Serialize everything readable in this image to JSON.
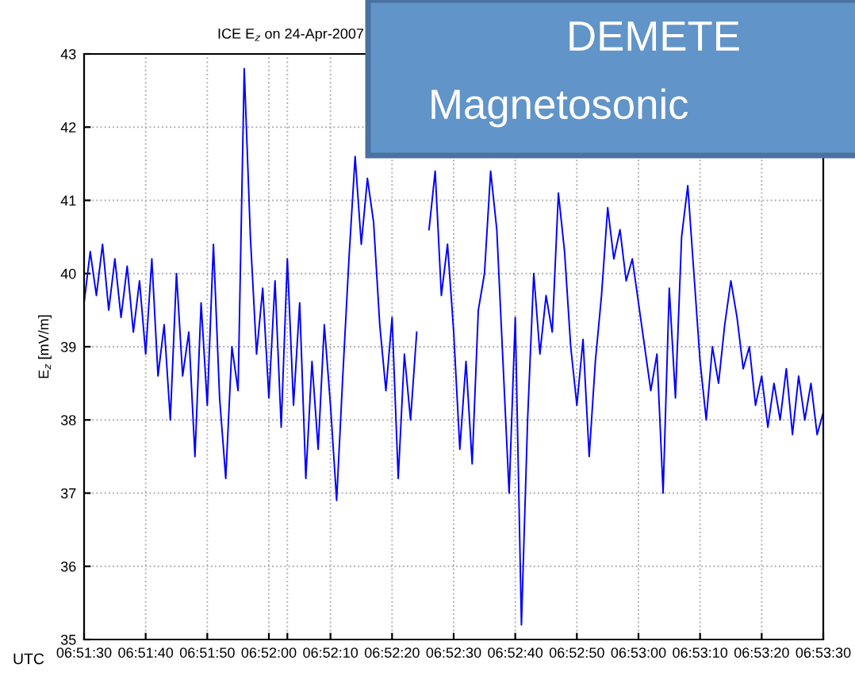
{
  "chart_data": {
    "type": "line",
    "title": "ICE E$_{z}$ on 24-Apr-2007",
    "ylabel": "E$_{z}$ [mV/m]",
    "annotations": [
      "UTC",
      "DEMETE",
      "Magnetosonic"
    ],
    "x": [
      "2007-04-24T06:51:30",
      "2007-04-24T06:51:31",
      "2007-04-24T06:51:32",
      "2007-04-24T06:51:33",
      "2007-04-24T06:51:34",
      "2007-04-24T06:51:35",
      "2007-04-24T06:51:36",
      "2007-04-24T06:51:37",
      "2007-04-24T06:51:38",
      "2007-04-24T06:51:39",
      "2007-04-24T06:51:40",
      "2007-04-24T06:51:41",
      "2007-04-24T06:51:42",
      "2007-04-24T06:51:43",
      "2007-04-24T06:51:44",
      "2007-04-24T06:51:45",
      "2007-04-24T06:51:46",
      "2007-04-24T06:51:47",
      "2007-04-24T06:51:48",
      "2007-04-24T06:51:49",
      "2007-04-24T06:51:50",
      "2007-04-24T06:51:51",
      "2007-04-24T06:51:52",
      "2007-04-24T06:51:53",
      "2007-04-24T06:51:54",
      "2007-04-24T06:51:55",
      "2007-04-24T06:51:56",
      "2007-04-24T06:51:57",
      "2007-04-24T06:51:58",
      "2007-04-24T06:51:59",
      "2007-04-24T06:52:00",
      "2007-04-24T06:52:01",
      "2007-04-24T06:52:02",
      "2007-04-24T06:52:03",
      "2007-04-24T06:52:04",
      "2007-04-24T06:52:05",
      "2007-04-24T06:52:06",
      "2007-04-24T06:52:07",
      "2007-04-24T06:52:08",
      "2007-04-24T06:52:09",
      "2007-04-24T06:52:10",
      "2007-04-24T06:52:11",
      "2007-04-24T06:52:12",
      "2007-04-24T06:52:13",
      "2007-04-24T06:52:14",
      "2007-04-24T06:52:15",
      "2007-04-24T06:52:16",
      "2007-04-24T06:52:17",
      "2007-04-24T06:52:18",
      "2007-04-24T06:52:19",
      "2007-04-24T06:52:20",
      "2007-04-24T06:52:21",
      "2007-04-24T06:52:22",
      "2007-04-24T06:52:23",
      "2007-04-24T06:52:24",
      "2007-04-24T06:52:25",
      "2007-04-24T06:52:26",
      "2007-04-24T06:52:27",
      "2007-04-24T06:52:28",
      "2007-04-24T06:52:29",
      "2007-04-24T06:52:30",
      "2007-04-24T06:52:31",
      "2007-04-24T06:52:32",
      "2007-04-24T06:52:33",
      "2007-04-24T06:52:34",
      "2007-04-24T06:52:35",
      "2007-04-24T06:52:36",
      "2007-04-24T06:52:37",
      "2007-04-24T06:52:38",
      "2007-04-24T06:52:39",
      "2007-04-24T06:52:40",
      "2007-04-24T06:52:41",
      "2007-04-24T06:52:42",
      "2007-04-24T06:52:43",
      "2007-04-24T06:52:44",
      "2007-04-24T06:52:45",
      "2007-04-24T06:52:46",
      "2007-04-24T06:52:47",
      "2007-04-24T06:52:48",
      "2007-04-24T06:52:49",
      "2007-04-24T06:52:50",
      "2007-04-24T06:52:51",
      "2007-04-24T06:52:52",
      "2007-04-24T06:52:53",
      "2007-04-24T06:52:54",
      "2007-04-24T06:52:55",
      "2007-04-24T06:52:56",
      "2007-04-24T06:52:57",
      "2007-04-24T06:52:58",
      "2007-04-24T06:52:59",
      "2007-04-24T06:53:00",
      "2007-04-24T06:53:01",
      "2007-04-24T06:53:02",
      "2007-04-24T06:53:03",
      "2007-04-24T06:53:04",
      "2007-04-24T06:53:05",
      "2007-04-24T06:53:06",
      "2007-04-24T06:53:07",
      "2007-04-24T06:53:08",
      "2007-04-24T06:53:09",
      "2007-04-24T06:53:10",
      "2007-04-24T06:53:11",
      "2007-04-24T06:53:12",
      "2007-04-24T06:53:13",
      "2007-04-24T06:53:14",
      "2007-04-24T06:53:15",
      "2007-04-24T06:53:16",
      "2007-04-24T06:53:17",
      "2007-04-24T06:53:18",
      "2007-04-24T06:53:19",
      "2007-04-24T06:53:20",
      "2007-04-24T06:53:21",
      "2007-04-24T06:53:22",
      "2007-04-24T06:53:23",
      "2007-04-24T06:53:24",
      "2007-04-24T06:53:25",
      "2007-04-24T06:53:26",
      "2007-04-24T06:53:27",
      "2007-04-24T06:53:28",
      "2007-04-24T06:53:29",
      "2007-04-24T06:53:30"
    ],
    "series": [
      {
        "color": "#0000ff",
        "values": [
          39.6,
          40.3,
          39.7,
          40.4,
          39.5,
          40.2,
          39.4,
          40.1,
          39.2,
          39.9,
          38.9,
          40.2,
          38.6,
          39.3,
          38.0,
          40.0,
          38.6,
          39.2,
          37.5,
          39.6,
          38.2,
          40.4,
          38.3,
          37.2,
          39.0,
          38.4,
          42.8,
          40.5,
          38.9,
          39.8,
          38.3,
          39.9,
          37.9,
          40.2,
          38.2,
          39.6,
          37.2,
          38.8,
          37.6,
          39.3,
          38.2,
          36.9,
          38.6,
          40.2,
          41.6,
          40.4,
          41.3,
          40.7,
          39.3,
          38.4,
          39.4,
          37.2,
          38.9,
          38.0,
          39.2,
          null,
          40.6,
          41.4,
          39.7,
          40.4,
          39.2,
          37.6,
          38.8,
          37.4,
          39.5,
          40.0,
          41.4,
          40.6,
          38.8,
          37.0,
          39.4,
          35.2,
          38.0,
          40.0,
          38.9,
          39.7,
          39.2,
          41.1,
          40.3,
          39.0,
          38.2,
          39.1,
          37.5,
          38.8,
          39.7,
          40.9,
          40.2,
          40.6,
          39.9,
          40.2,
          39.6,
          39.0,
          38.4,
          38.9,
          37.0,
          39.8,
          38.3,
          40.5,
          41.2,
          40.0,
          38.8,
          38.0,
          39.0,
          38.5,
          39.3,
          39.9,
          39.4,
          38.7,
          39.0,
          38.2,
          38.6,
          37.9,
          38.5,
          38.0,
          38.7,
          37.8,
          38.6,
          38.0,
          38.5,
          37.8,
          38.1
        ]
      }
    ],
    "xlim": [
      "2007-04-24T06:51:30",
      "2007-04-24T06:53:30"
    ],
    "xticks": [
      {
        "value": "2007-04-24T06:51:30",
        "label": "06:51:30"
      },
      {
        "value": "2007-04-24T06:51:40",
        "label": "06:51:40"
      },
      {
        "value": "2007-04-24T06:51:50",
        "label": "06:51:50"
      },
      {
        "value": "2007-04-24T06:52:00",
        "label": "06:52:00"
      },
      {
        "value": "2007-04-24T06:52:03",
        "label": null
      },
      {
        "value": "2007-04-24T06:52:10",
        "label": "06:52:10"
      },
      {
        "value": "2007-04-24T06:52:20",
        "label": "06:52:20"
      },
      {
        "value": "2007-04-24T06:52:30",
        "label": "06:52:30"
      },
      {
        "value": "2007-04-24T06:52:40",
        "label": "06:52:40"
      },
      {
        "value": "2007-04-24T06:52:50",
        "label": "06:52:50"
      },
      {
        "value": "2007-04-24T06:53:00",
        "label": "06:53:00"
      },
      {
        "value": "2007-04-24T06:53:10",
        "label": "06:53:10"
      },
      {
        "value": "2007-04-24T06:53:20",
        "label": "06:53:20"
      },
      {
        "value": "2007-04-24T06:53:30",
        "label": "06:53:30"
      }
    ],
    "ylim": [
      35,
      43
    ],
    "yticks": [
      35,
      36,
      37,
      38,
      39,
      40,
      41,
      42,
      43
    ],
    "grid": true,
    "line_style": "solid",
    "marker": "none"
  }
}
